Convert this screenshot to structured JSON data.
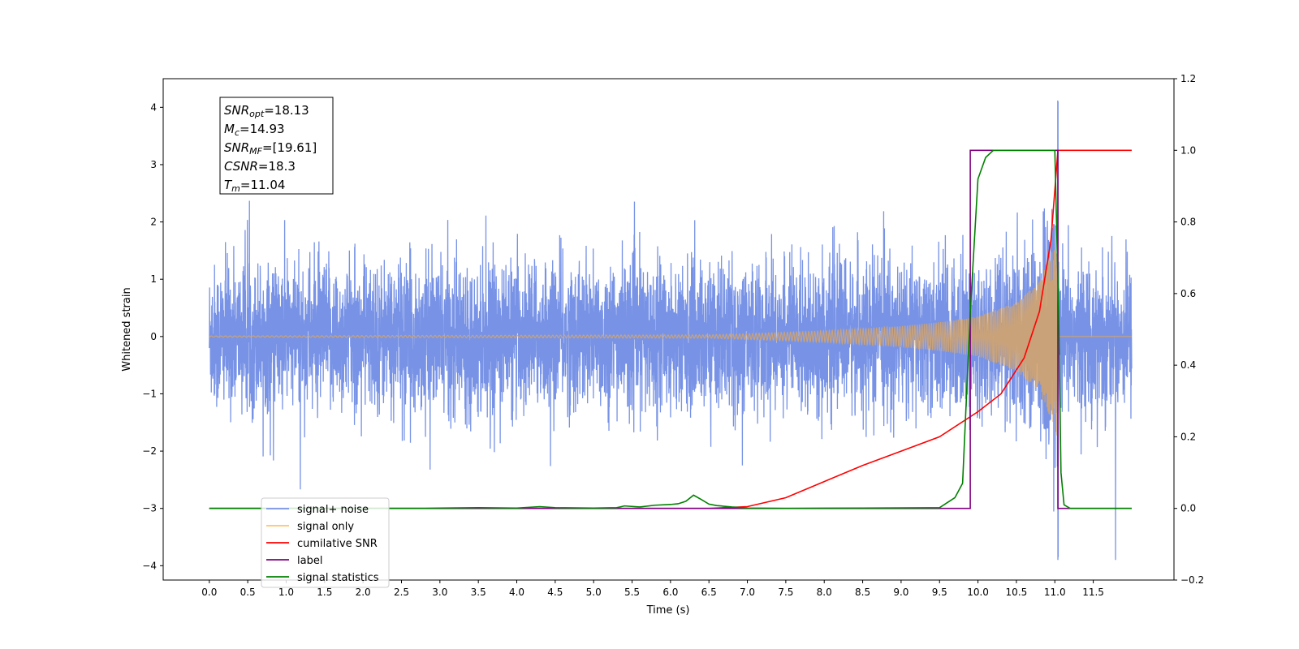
{
  "chart_data": {
    "type": "line",
    "xlabel": "Time (s)",
    "ylabel": "Whitened strain",
    "xlim": [
      -0.6,
      12.55
    ],
    "ylim": [
      -4.25,
      4.5
    ],
    "ylim_right": [
      -0.2,
      1.2
    ],
    "grid": false,
    "legend_position": "lower-left",
    "x_ticks": [
      "0.0",
      "0.5",
      "1.0",
      "1.5",
      "2.0",
      "2.5",
      "3.0",
      "3.5",
      "4.0",
      "4.5",
      "5.0",
      "5.5",
      "6.0",
      "6.5",
      "7.0",
      "7.5",
      "8.0",
      "8.5",
      "9.0",
      "9.5",
      "10.0",
      "10.5",
      "11.0",
      "11.5"
    ],
    "y_ticks": [
      "−4",
      "−3",
      "−2",
      "−1",
      "0",
      "1",
      "2",
      "3",
      "4"
    ],
    "y_ticks_right": [
      "−0.2",
      "0.0",
      "0.2",
      "0.4",
      "0.6",
      "0.8",
      "1.0",
      "1.2"
    ],
    "annotation_box": [
      {
        "label": "SNR",
        "sub": "opt",
        "value": "=18.13"
      },
      {
        "label": "M",
        "sub": "c",
        "value": "=14.93"
      },
      {
        "label": "SNR",
        "sub": "MF",
        "value": "=[19.61]"
      },
      {
        "label": "CSNR",
        "sub": "",
        "value": "=18.3"
      },
      {
        "label": "T",
        "sub": "m",
        "value": "=11.04"
      }
    ],
    "legend": [
      {
        "name": "signal+ noise",
        "color": "#7893e6"
      },
      {
        "name": "signal only",
        "color": "#ffc36b"
      },
      {
        "name": "cumilative SNR",
        "color": "#ff0000"
      },
      {
        "name": "label",
        "color": "#800080"
      },
      {
        "name": "signal statistics",
        "color": "#008000"
      }
    ],
    "series": [
      {
        "name": "signal+ noise",
        "axis": "left",
        "color": "#7893e6",
        "description": "whitened noisy strain, roughly ±1.5 with spikes to ±2.5, peak 4.1 near 11.04 s",
        "x_range": [
          0.0,
          12.0
        ],
        "peak": {
          "x": 11.04,
          "y_max": 4.1,
          "y_min": -3.85
        }
      },
      {
        "name": "signal only",
        "axis": "left",
        "color": "#d2a46e",
        "description": "chirp signal, amplitude growing from ~0 to ~1.8 at merger 11.04 s, then zero",
        "x_range": [
          0.0,
          12.0
        ],
        "envelope_points": [
          [
            0,
            0.01
          ],
          [
            6.5,
            0.03
          ],
          [
            7.0,
            0.05
          ],
          [
            8.0,
            0.1
          ],
          [
            9.0,
            0.18
          ],
          [
            9.5,
            0.25
          ],
          [
            10.0,
            0.35
          ],
          [
            10.5,
            0.6
          ],
          [
            10.8,
            0.95
          ],
          [
            11.0,
            1.6
          ],
          [
            11.04,
            1.8
          ]
        ]
      },
      {
        "name": "cumilative SNR",
        "axis": "right",
        "color": "#ff0000",
        "x": [
          0.0,
          6.5,
          7.0,
          7.5,
          8.0,
          8.5,
          9.0,
          9.5,
          10.0,
          10.3,
          10.6,
          10.8,
          10.95,
          11.04,
          12.0
        ],
        "y": [
          0.0,
          0.0,
          0.005,
          0.03,
          0.075,
          0.12,
          0.16,
          0.2,
          0.27,
          0.32,
          0.42,
          0.55,
          0.75,
          1.0,
          1.0
        ]
      },
      {
        "name": "label",
        "axis": "right",
        "color": "#800080",
        "x": [
          0.0,
          9.9,
          9.9,
          11.04,
          11.04,
          11.1,
          11.1,
          12.0
        ],
        "y": [
          0.0,
          0.0,
          1.0,
          1.0,
          0.0,
          0.0,
          0.0,
          0.0
        ]
      },
      {
        "name": "signal statistics",
        "axis": "right",
        "color": "#008000",
        "x": [
          0.0,
          2.8,
          3.0,
          3.5,
          4.0,
          4.3,
          4.5,
          5.0,
          5.3,
          5.4,
          5.6,
          5.8,
          6.0,
          6.1,
          6.2,
          6.3,
          6.4,
          6.5,
          6.6,
          6.8,
          7.0,
          7.5,
          8.5,
          9.5,
          9.7,
          9.8,
          9.9,
          10.0,
          10.1,
          10.2,
          10.5,
          11.0,
          11.05,
          11.08,
          11.12,
          11.2,
          12.0
        ],
        "y": [
          0.0,
          0.0,
          0.001,
          0.002,
          0.001,
          0.005,
          0.002,
          0.001,
          0.002,
          0.007,
          0.004,
          0.009,
          0.011,
          0.013,
          0.02,
          0.037,
          0.025,
          0.012,
          0.008,
          0.004,
          0.001,
          0.0,
          0.001,
          0.002,
          0.03,
          0.07,
          0.55,
          0.92,
          0.98,
          1.0,
          1.0,
          1.0,
          0.55,
          0.1,
          0.01,
          0.0,
          0.0
        ]
      }
    ]
  }
}
